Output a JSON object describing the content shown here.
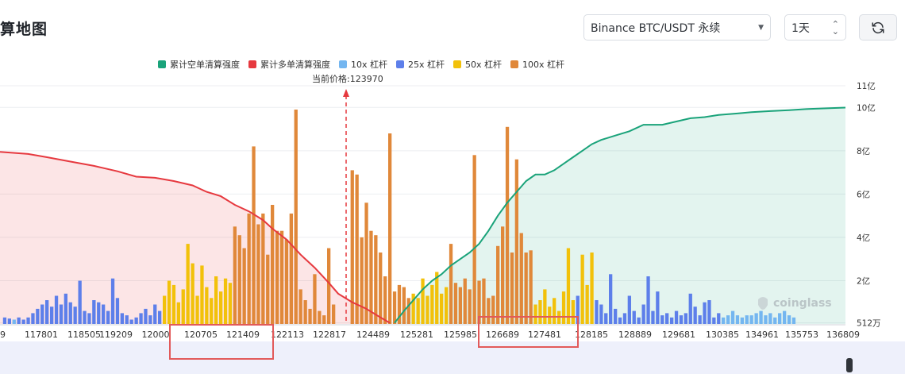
{
  "page": {
    "title": "算地图"
  },
  "controls": {
    "pair_select": "Binance BTC/USDT 永续",
    "range_select": "1天",
    "refresh_icon": "refresh-icon"
  },
  "legend": [
    {
      "label": "累计空单清算强度",
      "color": "#1aa37a"
    },
    {
      "label": "累计多单清算强度",
      "color": "#e6393f"
    },
    {
      "label": "10x 杠杆",
      "color": "#74b6f0"
    },
    {
      "label": "25x 杠杆",
      "color": "#5d7fea"
    },
    {
      "label": "50x 杠杆",
      "color": "#f2c10a"
    },
    {
      "label": "100x 杠杆",
      "color": "#e0883a"
    }
  ],
  "current_price_label": "当前价格:123970",
  "watermark": "coinglass",
  "chart_data": {
    "type": "bar",
    "current_price": 123970,
    "x_tick_labels": [
      "9",
      "117801",
      "118505",
      "119209",
      "12000",
      "120705",
      "121409",
      "122113",
      "122817",
      "124489",
      "125281",
      "125985",
      "126689",
      "127481",
      "128185",
      "128889",
      "129681",
      "130385",
      "134961",
      "135753",
      "136809"
    ],
    "y_tick_labels": [
      "512万",
      "2亿",
      "4亿",
      "6亿",
      "8亿",
      "10亿",
      "11亿"
    ],
    "y_tick_values": [
      0.0512,
      2,
      4,
      6,
      8,
      10,
      11
    ],
    "y_unit": "亿",
    "ylim": [
      0,
      11
    ],
    "grid": true,
    "legend_position": "top",
    "bars": [
      {
        "x": 1,
        "lev": "25x",
        "v": 0.3
      },
      {
        "x": 2,
        "lev": "25x",
        "v": 0.25
      },
      {
        "x": 3,
        "lev": "10x",
        "v": 0.2
      },
      {
        "x": 4,
        "lev": "25x",
        "v": 0.3
      },
      {
        "x": 5,
        "lev": "25x",
        "v": 0.2
      },
      {
        "x": 6,
        "lev": "25x",
        "v": 0.3
      },
      {
        "x": 7,
        "lev": "25x",
        "v": 0.5
      },
      {
        "x": 8,
        "lev": "25x",
        "v": 0.7
      },
      {
        "x": 9,
        "lev": "25x",
        "v": 0.9
      },
      {
        "x": 10,
        "lev": "25x",
        "v": 1.1
      },
      {
        "x": 11,
        "lev": "25x",
        "v": 0.8
      },
      {
        "x": 12,
        "lev": "25x",
        "v": 1.3
      },
      {
        "x": 13,
        "lev": "25x",
        "v": 0.9
      },
      {
        "x": 14,
        "lev": "25x",
        "v": 1.4
      },
      {
        "x": 15,
        "lev": "25x",
        "v": 1.0
      },
      {
        "x": 16,
        "lev": "25x",
        "v": 0.8
      },
      {
        "x": 17,
        "lev": "25x",
        "v": 2.0
      },
      {
        "x": 18,
        "lev": "25x",
        "v": 0.6
      },
      {
        "x": 19,
        "lev": "25x",
        "v": 0.5
      },
      {
        "x": 20,
        "lev": "25x",
        "v": 1.1
      },
      {
        "x": 21,
        "lev": "25x",
        "v": 1.0
      },
      {
        "x": 22,
        "lev": "25x",
        "v": 0.9
      },
      {
        "x": 23,
        "lev": "25x",
        "v": 0.6
      },
      {
        "x": 24,
        "lev": "25x",
        "v": 2.1
      },
      {
        "x": 25,
        "lev": "25x",
        "v": 1.2
      },
      {
        "x": 26,
        "lev": "25x",
        "v": 0.5
      },
      {
        "x": 27,
        "lev": "25x",
        "v": 0.4
      },
      {
        "x": 28,
        "lev": "25x",
        "v": 0.2
      },
      {
        "x": 29,
        "lev": "25x",
        "v": 0.3
      },
      {
        "x": 30,
        "lev": "25x",
        "v": 0.5
      },
      {
        "x": 31,
        "lev": "25x",
        "v": 0.7
      },
      {
        "x": 32,
        "lev": "25x",
        "v": 0.4
      },
      {
        "x": 33,
        "lev": "25x",
        "v": 0.9
      },
      {
        "x": 34,
        "lev": "25x",
        "v": 0.6
      },
      {
        "x": 35,
        "lev": "50x",
        "v": 1.3
      },
      {
        "x": 36,
        "lev": "50x",
        "v": 2.0
      },
      {
        "x": 37,
        "lev": "50x",
        "v": 1.8
      },
      {
        "x": 38,
        "lev": "50x",
        "v": 1.0
      },
      {
        "x": 39,
        "lev": "50x",
        "v": 1.6
      },
      {
        "x": 40,
        "lev": "50x",
        "v": 3.7
      },
      {
        "x": 41,
        "lev": "50x",
        "v": 2.8
      },
      {
        "x": 42,
        "lev": "50x",
        "v": 1.3
      },
      {
        "x": 43,
        "lev": "50x",
        "v": 2.7
      },
      {
        "x": 44,
        "lev": "50x",
        "v": 1.7
      },
      {
        "x": 45,
        "lev": "50x",
        "v": 1.2
      },
      {
        "x": 46,
        "lev": "50x",
        "v": 2.2
      },
      {
        "x": 47,
        "lev": "50x",
        "v": 1.5
      },
      {
        "x": 48,
        "lev": "50x",
        "v": 2.1
      },
      {
        "x": 49,
        "lev": "50x",
        "v": 1.9
      },
      {
        "x": 50,
        "lev": "100x",
        "v": 4.5
      },
      {
        "x": 51,
        "lev": "100x",
        "v": 4.1
      },
      {
        "x": 52,
        "lev": "100x",
        "v": 3.5
      },
      {
        "x": 53,
        "lev": "100x",
        "v": 5.1
      },
      {
        "x": 54,
        "lev": "100x",
        "v": 8.2
      },
      {
        "x": 55,
        "lev": "100x",
        "v": 4.6
      },
      {
        "x": 56,
        "lev": "100x",
        "v": 5.1
      },
      {
        "x": 57,
        "lev": "100x",
        "v": 3.2
      },
      {
        "x": 58,
        "lev": "100x",
        "v": 5.5
      },
      {
        "x": 59,
        "lev": "100x",
        "v": 4.3
      },
      {
        "x": 60,
        "lev": "100x",
        "v": 4.3
      },
      {
        "x": 61,
        "lev": "100x",
        "v": 3.9
      },
      {
        "x": 62,
        "lev": "100x",
        "v": 5.1
      },
      {
        "x": 63,
        "lev": "100x",
        "v": 9.9
      },
      {
        "x": 64,
        "lev": "100x",
        "v": 1.6
      },
      {
        "x": 65,
        "lev": "100x",
        "v": 1.1
      },
      {
        "x": 66,
        "lev": "100x",
        "v": 0.7
      },
      {
        "x": 67,
        "lev": "100x",
        "v": 2.3
      },
      {
        "x": 68,
        "lev": "100x",
        "v": 0.6
      },
      {
        "x": 69,
        "lev": "100x",
        "v": 0.4
      },
      {
        "x": 70,
        "lev": "100x",
        "v": 3.5
      },
      {
        "x": 71,
        "lev": "100x",
        "v": 0.9
      },
      {
        "x": 75,
        "lev": "100x",
        "v": 7.1
      },
      {
        "x": 76,
        "lev": "100x",
        "v": 6.9
      },
      {
        "x": 77,
        "lev": "100x",
        "v": 4.0
      },
      {
        "x": 78,
        "lev": "100x",
        "v": 5.6
      },
      {
        "x": 79,
        "lev": "100x",
        "v": 4.3
      },
      {
        "x": 80,
        "lev": "100x",
        "v": 4.1
      },
      {
        "x": 81,
        "lev": "100x",
        "v": 3.3
      },
      {
        "x": 82,
        "lev": "100x",
        "v": 2.2
      },
      {
        "x": 83,
        "lev": "100x",
        "v": 8.8
      },
      {
        "x": 84,
        "lev": "100x",
        "v": 1.5
      },
      {
        "x": 85,
        "lev": "100x",
        "v": 1.8
      },
      {
        "x": 86,
        "lev": "100x",
        "v": 1.7
      },
      {
        "x": 87,
        "lev": "100x",
        "v": 1.2
      },
      {
        "x": 88,
        "lev": "50x",
        "v": 1.4
      },
      {
        "x": 89,
        "lev": "50x",
        "v": 1.2
      },
      {
        "x": 90,
        "lev": "50x",
        "v": 2.1
      },
      {
        "x": 91,
        "lev": "50x",
        "v": 1.3
      },
      {
        "x": 92,
        "lev": "50x",
        "v": 1.8
      },
      {
        "x": 93,
        "lev": "50x",
        "v": 2.4
      },
      {
        "x": 94,
        "lev": "50x",
        "v": 1.4
      },
      {
        "x": 95,
        "lev": "50x",
        "v": 1.7
      },
      {
        "x": 96,
        "lev": "100x",
        "v": 3.7
      },
      {
        "x": 97,
        "lev": "100x",
        "v": 1.9
      },
      {
        "x": 98,
        "lev": "100x",
        "v": 1.7
      },
      {
        "x": 99,
        "lev": "100x",
        "v": 2.1
      },
      {
        "x": 100,
        "lev": "100x",
        "v": 1.6
      },
      {
        "x": 101,
        "lev": "100x",
        "v": 7.8
      },
      {
        "x": 102,
        "lev": "100x",
        "v": 2.0
      },
      {
        "x": 103,
        "lev": "100x",
        "v": 2.1
      },
      {
        "x": 104,
        "lev": "100x",
        "v": 1.2
      },
      {
        "x": 105,
        "lev": "100x",
        "v": 1.3
      },
      {
        "x": 106,
        "lev": "100x",
        "v": 3.6
      },
      {
        "x": 107,
        "lev": "100x",
        "v": 4.5
      },
      {
        "x": 108,
        "lev": "100x",
        "v": 9.1
      },
      {
        "x": 109,
        "lev": "100x",
        "v": 3.3
      },
      {
        "x": 110,
        "lev": "100x",
        "v": 7.6
      },
      {
        "x": 111,
        "lev": "100x",
        "v": 4.2
      },
      {
        "x": 112,
        "lev": "100x",
        "v": 3.3
      },
      {
        "x": 113,
        "lev": "100x",
        "v": 3.4
      },
      {
        "x": 114,
        "lev": "50x",
        "v": 0.9
      },
      {
        "x": 115,
        "lev": "50x",
        "v": 1.1
      },
      {
        "x": 116,
        "lev": "50x",
        "v": 1.6
      },
      {
        "x": 117,
        "lev": "50x",
        "v": 0.8
      },
      {
        "x": 118,
        "lev": "50x",
        "v": 1.2
      },
      {
        "x": 119,
        "lev": "50x",
        "v": 0.6
      },
      {
        "x": 120,
        "lev": "50x",
        "v": 1.5
      },
      {
        "x": 121,
        "lev": "50x",
        "v": 3.5
      },
      {
        "x": 122,
        "lev": "50x",
        "v": 1.1
      },
      {
        "x": 123,
        "lev": "25x",
        "v": 1.3
      },
      {
        "x": 124,
        "lev": "50x",
        "v": 3.2
      },
      {
        "x": 125,
        "lev": "50x",
        "v": 1.8
      },
      {
        "x": 126,
        "lev": "50x",
        "v": 3.3
      },
      {
        "x": 127,
        "lev": "25x",
        "v": 1.1
      },
      {
        "x": 128,
        "lev": "25x",
        "v": 0.9
      },
      {
        "x": 129,
        "lev": "25x",
        "v": 0.5
      },
      {
        "x": 130,
        "lev": "25x",
        "v": 2.3
      },
      {
        "x": 131,
        "lev": "25x",
        "v": 0.7
      },
      {
        "x": 132,
        "lev": "25x",
        "v": 0.3
      },
      {
        "x": 133,
        "lev": "25x",
        "v": 0.5
      },
      {
        "x": 134,
        "lev": "25x",
        "v": 1.3
      },
      {
        "x": 135,
        "lev": "25x",
        "v": 0.6
      },
      {
        "x": 136,
        "lev": "25x",
        "v": 0.3
      },
      {
        "x": 137,
        "lev": "25x",
        "v": 0.9
      },
      {
        "x": 138,
        "lev": "25x",
        "v": 2.2
      },
      {
        "x": 139,
        "lev": "25x",
        "v": 0.6
      },
      {
        "x": 140,
        "lev": "25x",
        "v": 1.5
      },
      {
        "x": 141,
        "lev": "25x",
        "v": 0.4
      },
      {
        "x": 142,
        "lev": "25x",
        "v": 0.5
      },
      {
        "x": 143,
        "lev": "25x",
        "v": 0.3
      },
      {
        "x": 144,
        "lev": "25x",
        "v": 0.6
      },
      {
        "x": 145,
        "lev": "25x",
        "v": 0.4
      },
      {
        "x": 146,
        "lev": "25x",
        "v": 0.5
      },
      {
        "x": 147,
        "lev": "25x",
        "v": 1.4
      },
      {
        "x": 148,
        "lev": "25x",
        "v": 0.8
      },
      {
        "x": 149,
        "lev": "25x",
        "v": 0.4
      },
      {
        "x": 150,
        "lev": "25x",
        "v": 1.0
      },
      {
        "x": 151,
        "lev": "25x",
        "v": 1.1
      },
      {
        "x": 152,
        "lev": "25x",
        "v": 0.3
      },
      {
        "x": 153,
        "lev": "25x",
        "v": 0.5
      },
      {
        "x": 154,
        "lev": "10x",
        "v": 0.3
      },
      {
        "x": 155,
        "lev": "10x",
        "v": 0.4
      },
      {
        "x": 156,
        "lev": "10x",
        "v": 0.6
      },
      {
        "x": 157,
        "lev": "10x",
        "v": 0.4
      },
      {
        "x": 158,
        "lev": "10x",
        "v": 0.3
      },
      {
        "x": 159,
        "lev": "10x",
        "v": 0.4
      },
      {
        "x": 160,
        "lev": "10x",
        "v": 0.4
      },
      {
        "x": 161,
        "lev": "10x",
        "v": 0.5
      },
      {
        "x": 162,
        "lev": "10x",
        "v": 0.6
      },
      {
        "x": 163,
        "lev": "10x",
        "v": 0.4
      },
      {
        "x": 164,
        "lev": "10x",
        "v": 0.5
      },
      {
        "x": 165,
        "lev": "10x",
        "v": 0.3
      },
      {
        "x": 166,
        "lev": "10x",
        "v": 0.5
      },
      {
        "x": 167,
        "lev": "10x",
        "v": 0.6
      },
      {
        "x": 168,
        "lev": "10x",
        "v": 0.4
      },
      {
        "x": 169,
        "lev": "10x",
        "v": 0.3
      }
    ],
    "long_cumulative": [
      [
        0,
        7.95
      ],
      [
        6,
        7.85
      ],
      [
        10,
        7.7
      ],
      [
        15,
        7.5
      ],
      [
        20,
        7.3
      ],
      [
        25,
        7.05
      ],
      [
        29,
        6.8
      ],
      [
        33,
        6.75
      ],
      [
        37,
        6.6
      ],
      [
        41,
        6.4
      ],
      [
        44,
        6.1
      ],
      [
        47,
        5.9
      ],
      [
        50,
        5.5
      ],
      [
        53,
        5.2
      ],
      [
        56,
        4.8
      ],
      [
        58,
        4.4
      ],
      [
        61,
        3.9
      ],
      [
        64,
        3.2
      ],
      [
        67,
        2.6
      ],
      [
        70,
        1.9
      ],
      [
        72,
        1.4
      ],
      [
        75,
        1.0
      ],
      [
        78,
        0.7
      ],
      [
        81,
        0.3
      ],
      [
        83,
        0.05
      ]
    ],
    "short_cumulative": [
      [
        84,
        0.05
      ],
      [
        86,
        0.6
      ],
      [
        88,
        1.1
      ],
      [
        90,
        1.6
      ],
      [
        92,
        2.0
      ],
      [
        94,
        2.3
      ],
      [
        96,
        2.7
      ],
      [
        98,
        3.0
      ],
      [
        100,
        3.3
      ],
      [
        102,
        3.7
      ],
      [
        104,
        4.3
      ],
      [
        106,
        5.0
      ],
      [
        108,
        5.6
      ],
      [
        110,
        6.1
      ],
      [
        112,
        6.6
      ],
      [
        114,
        6.9
      ],
      [
        116,
        6.9
      ],
      [
        118,
        7.1
      ],
      [
        120,
        7.4
      ],
      [
        122,
        7.7
      ],
      [
        124,
        8.0
      ],
      [
        126,
        8.3
      ],
      [
        128,
        8.5
      ],
      [
        131,
        8.7
      ],
      [
        134,
        8.9
      ],
      [
        137,
        9.2
      ],
      [
        141,
        9.2
      ],
      [
        144,
        9.35
      ],
      [
        147,
        9.5
      ],
      [
        150,
        9.55
      ],
      [
        153,
        9.65
      ],
      [
        157,
        9.72
      ],
      [
        160,
        9.78
      ],
      [
        164,
        9.83
      ],
      [
        168,
        9.87
      ],
      [
        172,
        9.93
      ],
      [
        176,
        9.96
      ],
      [
        180,
        9.99
      ]
    ]
  }
}
